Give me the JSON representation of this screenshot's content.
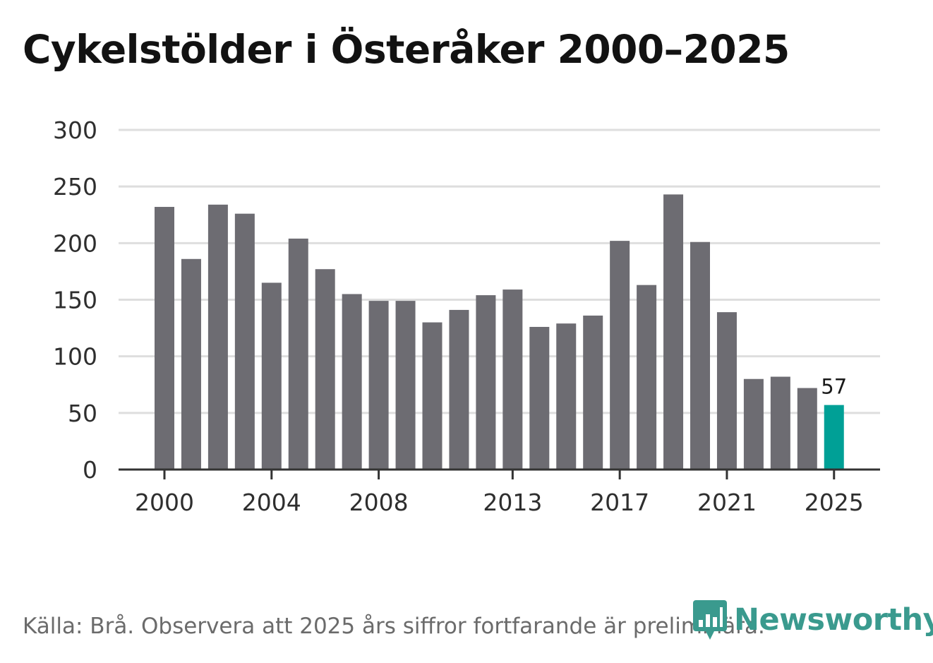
{
  "header": {
    "title": "Cykelstölder i Österåker 2000–2025"
  },
  "chart_data": {
    "type": "bar",
    "title": "Cykelstölder i Österåker 2000–2025",
    "xlabel": "",
    "ylabel": "",
    "ylim": [
      0,
      300
    ],
    "yticks": [
      0,
      50,
      100,
      150,
      200,
      250,
      300
    ],
    "categories": [
      2000,
      2001,
      2002,
      2003,
      2004,
      2005,
      2006,
      2007,
      2008,
      2009,
      2010,
      2011,
      2012,
      2013,
      2014,
      2015,
      2016,
      2017,
      2018,
      2019,
      2020,
      2021,
      2022,
      2023,
      2024,
      2025
    ],
    "xtick_labels": [
      "2000",
      "2004",
      "2008",
      "2013",
      "2017",
      "2021",
      "2025"
    ],
    "values": [
      232,
      186,
      234,
      226,
      165,
      204,
      177,
      155,
      149,
      149,
      130,
      141,
      154,
      159,
      126,
      129,
      136,
      202,
      163,
      243,
      201,
      139,
      80,
      82,
      72,
      57
    ],
    "highlight": {
      "category": 2025,
      "label": "57",
      "color": "#00a096"
    },
    "bar_color": "#6d6c72",
    "grid_color": "#dedede",
    "grid": true
  },
  "footer": {
    "source": "Källa: Brå. Observera att 2025 års siffror fortfarande är preliminära.",
    "brand": "Newsworthy",
    "brand_color": "#3a9a8e"
  }
}
